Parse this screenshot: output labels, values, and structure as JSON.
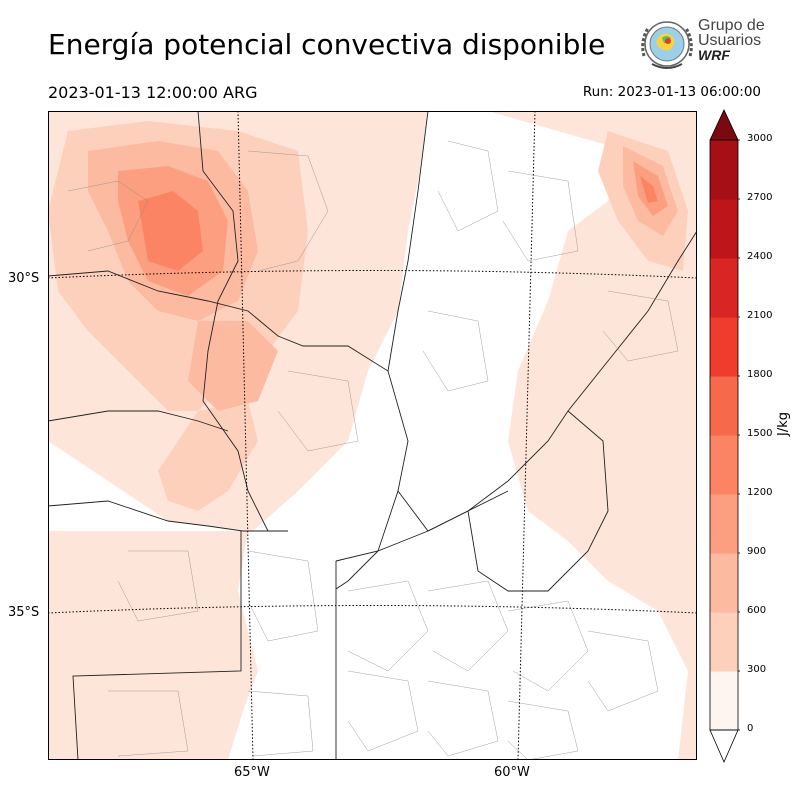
{
  "header": {
    "title": "Energía potencial convectiva disponible",
    "valid_time": "2023-01-13 12:00:00 ARG",
    "run_time": "Run: 2023-01-13 06:00:00"
  },
  "logo": {
    "line1": "Grupo de",
    "line2": "Usuarios",
    "line3": "WRF"
  },
  "map": {
    "lat_labels": [
      "30°S",
      "35°S"
    ],
    "lon_labels": [
      "65°W",
      "60°W"
    ]
  },
  "colorbar": {
    "unit": "J/kg",
    "levels": [
      0,
      300,
      600,
      900,
      1200,
      1500,
      1800,
      2100,
      2400,
      2700,
      3000
    ],
    "tick_labels": [
      "0",
      "300",
      "600",
      "900",
      "1200",
      "1500",
      "1800",
      "2100",
      "2400",
      "2700",
      "3000"
    ],
    "colors": [
      "#fee5d9",
      "#fdd0bc",
      "#fcbba1",
      "#fc9f81",
      "#fb8464",
      "#f6694b",
      "#ef3c2d",
      "#d92523",
      "#be151a",
      "#a50f15",
      "#7a0a10"
    ],
    "extend": "both"
  }
}
